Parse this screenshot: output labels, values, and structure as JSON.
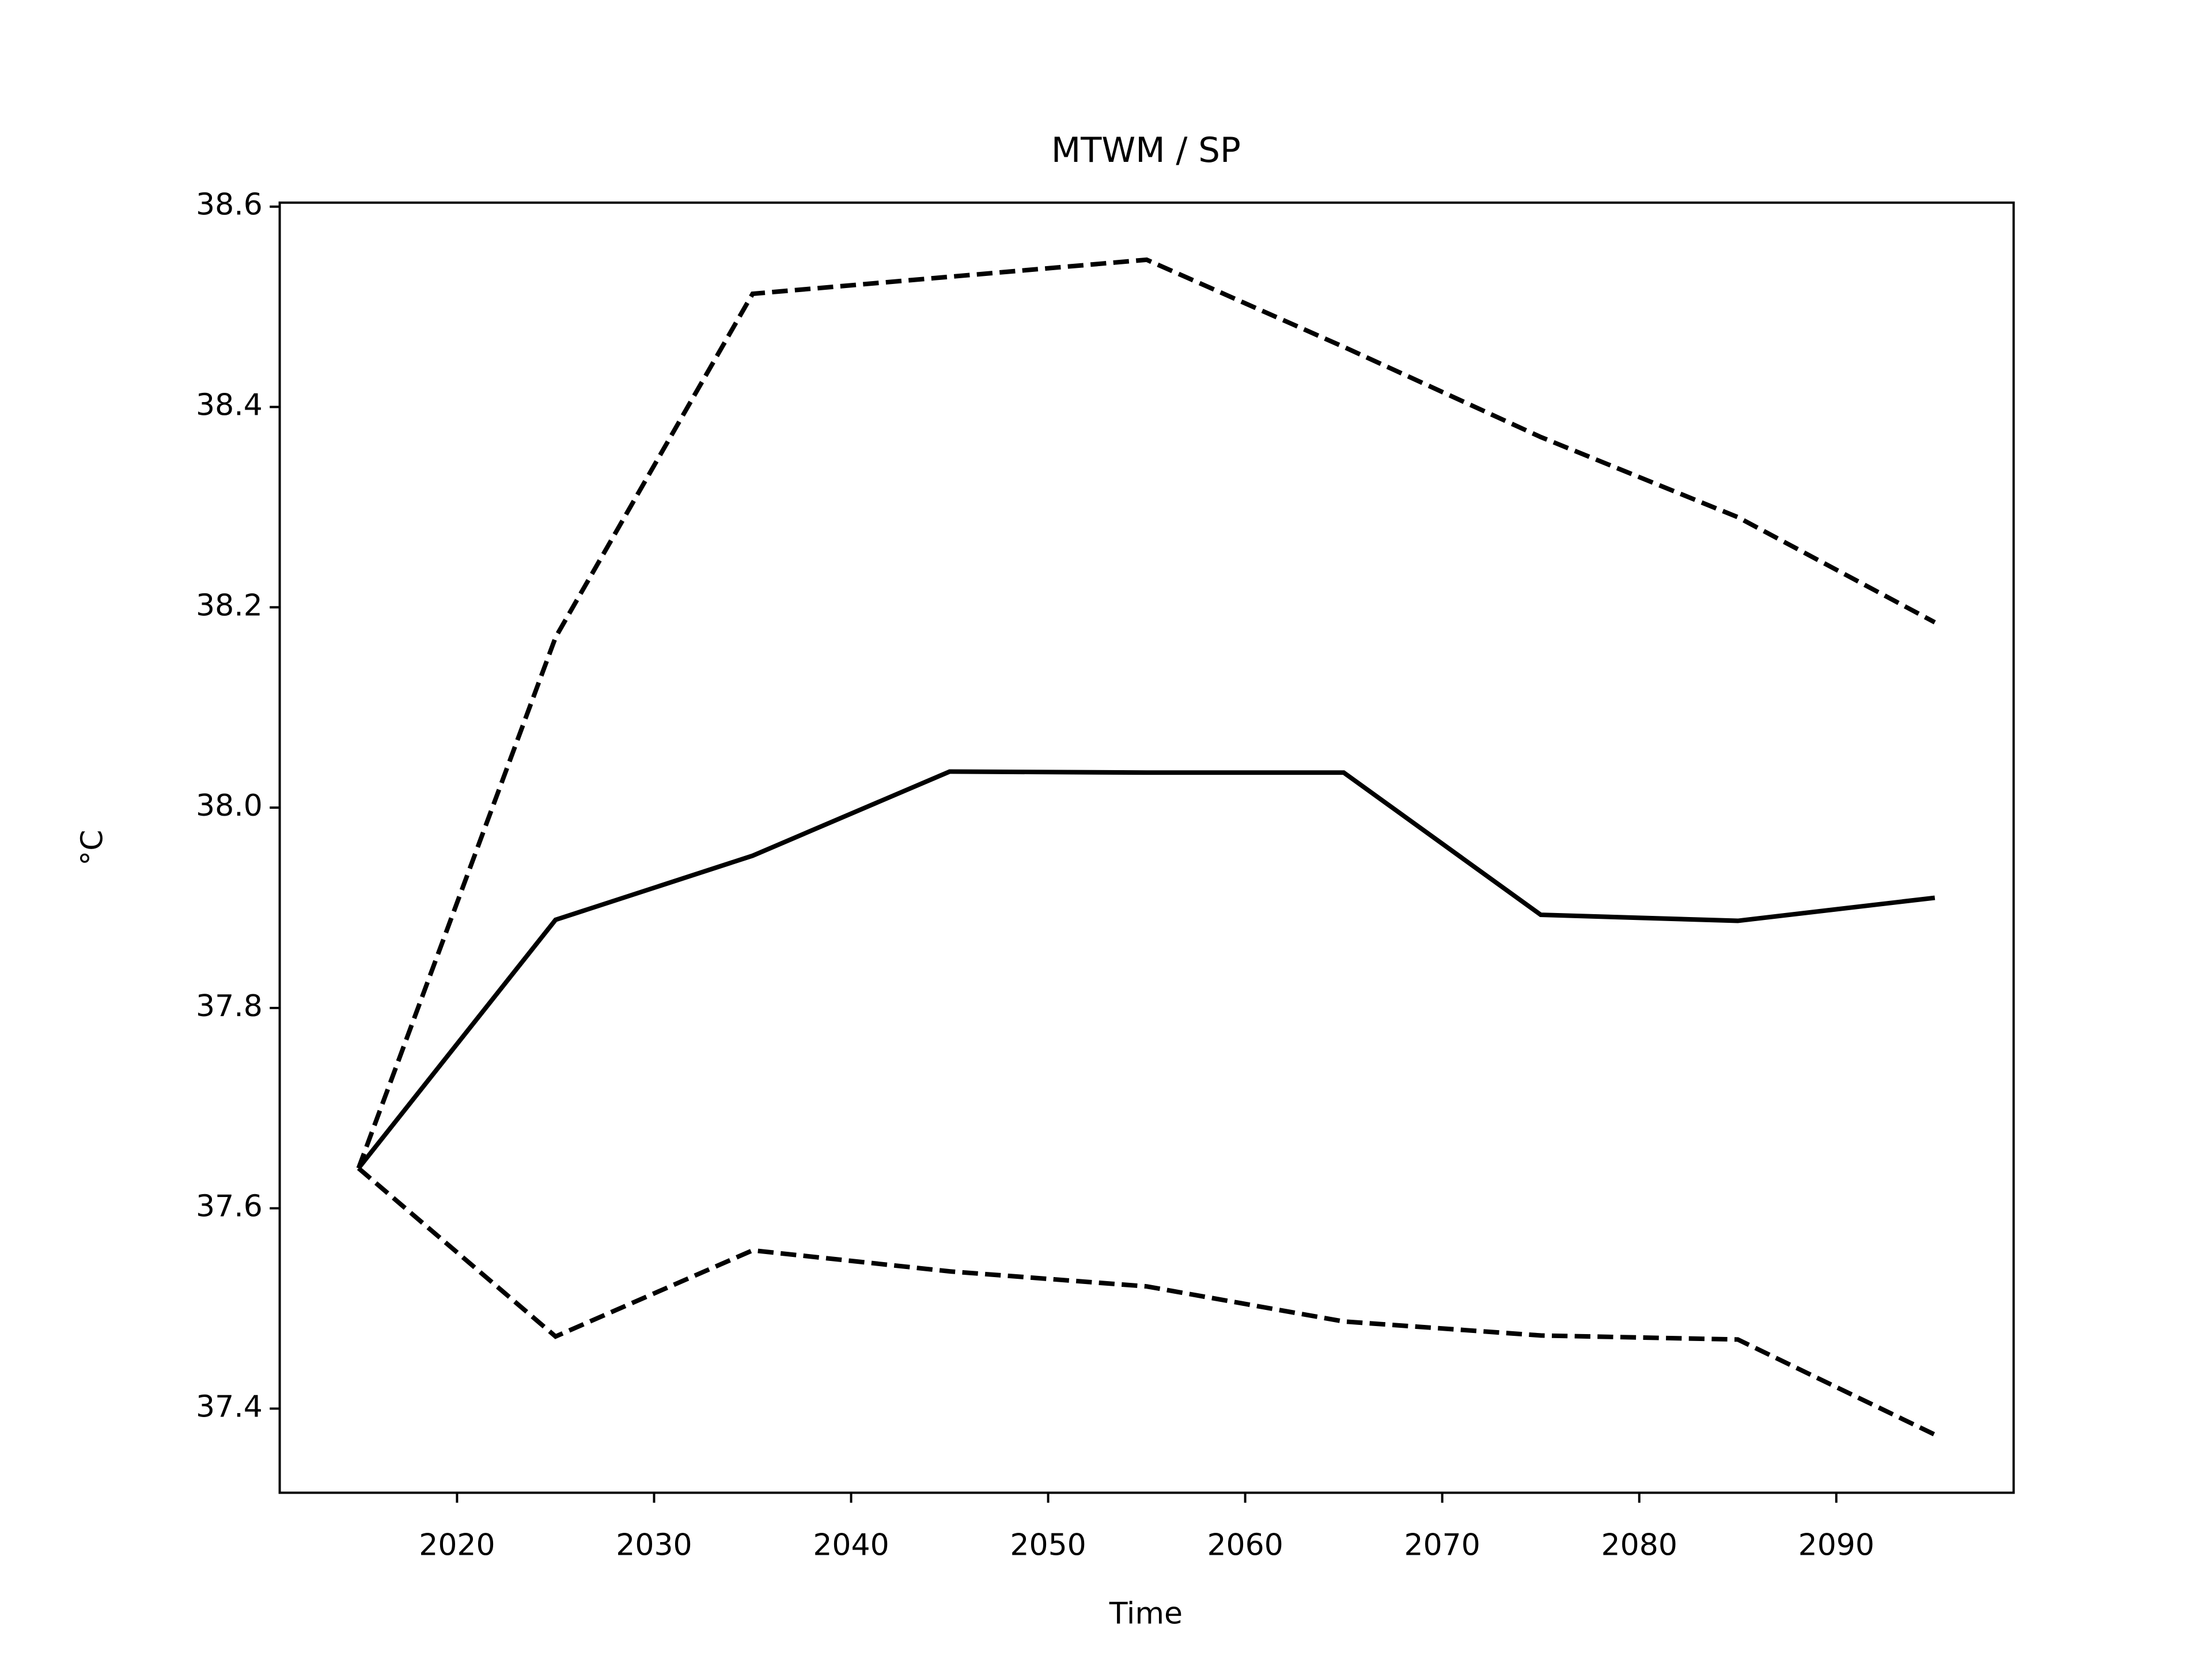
{
  "chart_data": {
    "type": "line",
    "title": "MTWM / SP",
    "x_label": "Time",
    "y_label": "°C",
    "x": [
      2015,
      2025,
      2035,
      2045,
      2055,
      2065,
      2075,
      2085,
      2095
    ],
    "series": [
      {
        "color": "#000000",
        "dash": "solid",
        "values": [
          37.64,
          37.888,
          37.952,
          38.036,
          38.035,
          38.035,
          37.893,
          37.887,
          37.91
        ]
      },
      {
        "color": "#000000",
        "dash": "dashed",
        "values": [
          37.64,
          38.17,
          38.513,
          38.53,
          38.547,
          38.46,
          38.37,
          38.29,
          38.185
        ]
      },
      {
        "color": "#000000",
        "dash": "dashed",
        "values": [
          37.64,
          37.472,
          37.558,
          37.537,
          37.522,
          37.487,
          37.473,
          37.469,
          37.374
        ]
      }
    ],
    "xlim": [
      2011,
      2099
    ],
    "xticks": [
      2020,
      2030,
      2040,
      2050,
      2060,
      2070,
      2080,
      2090
    ],
    "ylim": [
      37.316,
      38.604
    ],
    "yticks": [
      {
        "value": 37.4,
        "label": "37.4"
      },
      {
        "value": 37.6,
        "label": "37.6"
      },
      {
        "value": 37.8,
        "label": "37.8"
      },
      {
        "value": 38.0,
        "label": "38.0"
      },
      {
        "value": 38.2,
        "label": "38.2"
      },
      {
        "value": 38.4,
        "label": "38.4"
      },
      {
        "value": 38.6,
        "label": "38.6"
      }
    ],
    "grid": false
  }
}
